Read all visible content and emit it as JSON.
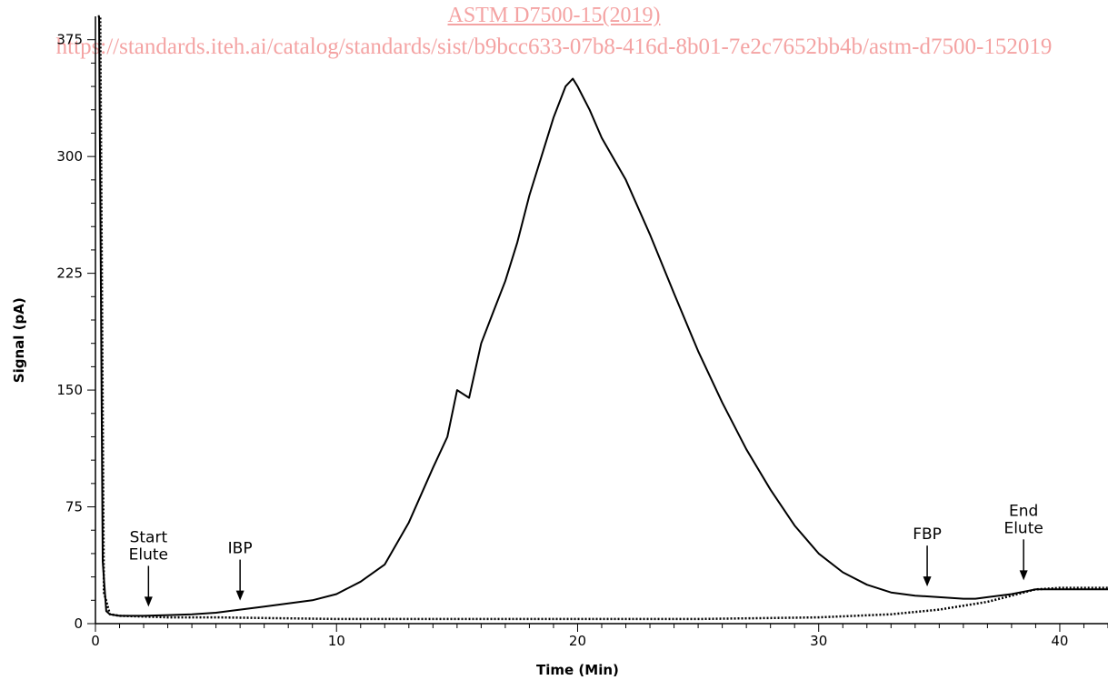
{
  "header": {
    "title": "ASTM D7500-15(2019)",
    "url": "https://standards.iteh.ai/catalog/standards/sist/b9bcc633-07b8-416d-8b01-7e2c7652bb4b/astm-d7500-152019"
  },
  "chart_data": {
    "type": "line",
    "title": "",
    "xlabel": "Time (Min)",
    "ylabel": "Signal (pA)",
    "xlim": [
      0,
      42
    ],
    "ylim": [
      0,
      390
    ],
    "xticks": [
      0,
      10,
      20,
      30,
      40
    ],
    "yticks": [
      0,
      75,
      150,
      225,
      300,
      375
    ],
    "grid": false,
    "legend": "none",
    "series": [
      {
        "style": "solid",
        "x": [
          0.15,
          0.3,
          0.45,
          0.6,
          1,
          2,
          3,
          4,
          5,
          6,
          7,
          8,
          9,
          10,
          11,
          12,
          13,
          14,
          14.6,
          15,
          15.5,
          16,
          16.5,
          17,
          17.5,
          18,
          18.5,
          19,
          19.5,
          19.8,
          20,
          20.5,
          21,
          22,
          23,
          24,
          25,
          26,
          27,
          28,
          29,
          30,
          31,
          32,
          33,
          34,
          35,
          36,
          36.5,
          37,
          38,
          39,
          40,
          41,
          42
        ],
        "y": [
          390,
          40,
          8,
          6,
          5,
          5,
          5.5,
          6,
          7,
          9,
          11,
          13,
          15,
          19,
          27,
          38,
          65,
          100,
          120,
          150,
          145,
          180,
          200,
          220,
          245,
          275,
          300,
          325,
          345,
          350,
          345,
          330,
          312,
          285,
          250,
          212,
          175,
          142,
          112,
          86,
          63,
          45,
          33,
          25,
          20,
          18,
          17,
          16,
          16,
          17,
          19,
          22,
          22,
          22,
          22
        ]
      },
      {
        "style": "dotted",
        "x": [
          0.1,
          0.2,
          0.35,
          0.6,
          1,
          3,
          5,
          10,
          15,
          20,
          25,
          30,
          33,
          35,
          37,
          38,
          39,
          40,
          42
        ],
        "y": [
          390,
          390,
          20,
          6,
          5,
          4,
          4,
          3,
          3,
          3,
          3,
          4,
          6,
          9,
          14,
          18,
          22,
          23,
          23
        ]
      }
    ],
    "annotations": [
      {
        "lines": [
          "Start",
          "Elute"
        ],
        "x": 2.2,
        "y": 5
      },
      {
        "lines": [
          "IBP"
        ],
        "x": 6.0,
        "y": 9
      },
      {
        "lines": [
          "FBP"
        ],
        "x": 34.5,
        "y": 18
      },
      {
        "lines": [
          "End",
          "Elute"
        ],
        "x": 38.5,
        "y": 22
      }
    ]
  }
}
